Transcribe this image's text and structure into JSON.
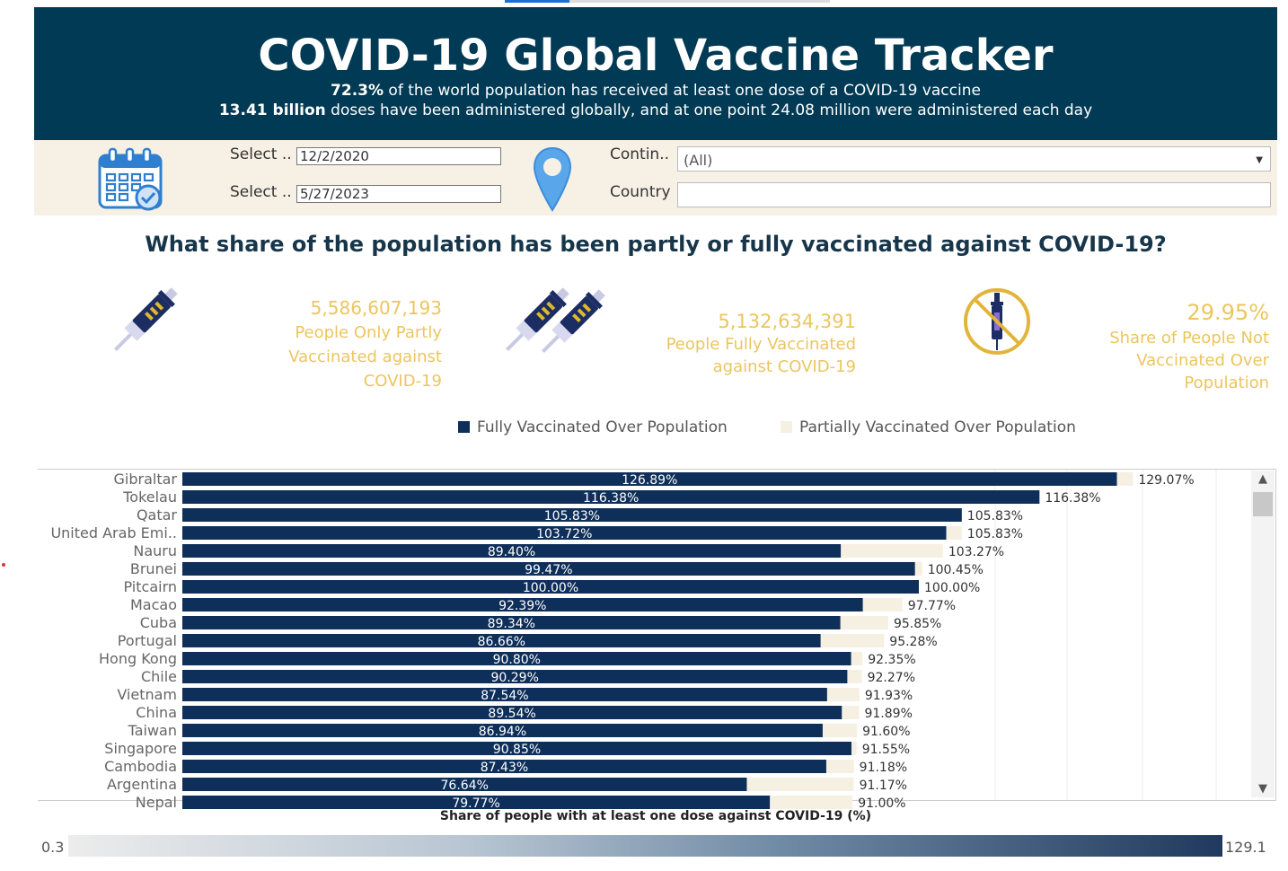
{
  "header": {
    "title": "COVID-19 Global Vaccine Tracker",
    "line1_bold": "72.3%",
    "line1_rest": " of the world population has received at least one dose of a COVID-19 vaccine",
    "line2_bold": "13.41 billion",
    "line2_rest": " doses have been administered globally, and at one point 24.08 million were administered each day"
  },
  "filters": {
    "start_label": "Select ..",
    "start_value": "12/2/2020",
    "end_label": "Select ..",
    "end_value": "5/27/2023",
    "continent_label": "Contin..",
    "continent_value": "(All)",
    "country_label": "Country",
    "country_value": ""
  },
  "question": "What share of the population has been partly or fully vaccinated against COVID-19?",
  "stats": {
    "partly": {
      "value": "5,586,607,193",
      "l1": "People Only Partly",
      "l2": "Vaccinated against",
      "l3": "COVID-19"
    },
    "fully": {
      "value": "5,132,634,391",
      "l1": "People Fully Vaccinated",
      "l2": "against COVID-19"
    },
    "not": {
      "value": "29.95%",
      "l1": "Share of People Not",
      "l2": "Vaccinated Over",
      "l3": "Population"
    }
  },
  "legend": {
    "fully": "Fully Vaccinated Over Population",
    "partially": "Partially Vaccinated Over Population"
  },
  "colors": {
    "fully": "#0e2f5a",
    "partially": "#f6f0e2",
    "header": "#003a54",
    "accent": "#ecc55d"
  },
  "chart_data": {
    "type": "bar",
    "orientation": "horizontal",
    "categories": [
      "Gibraltar",
      "Tokelau",
      "Qatar",
      "United Arab Emi..",
      "Nauru",
      "Brunei",
      "Pitcairn",
      "Macao",
      "Cuba",
      "Portugal",
      "Hong Kong",
      "Chile",
      "Vietnam",
      "China",
      "Taiwan",
      "Singapore",
      "Cambodia",
      "Argentina",
      "Nepal"
    ],
    "series": [
      {
        "name": "Fully Vaccinated Over Population",
        "values": [
          126.89,
          116.38,
          105.83,
          103.72,
          89.4,
          99.47,
          100.0,
          92.39,
          89.34,
          86.66,
          90.8,
          90.29,
          87.54,
          89.54,
          86.94,
          90.85,
          87.43,
          76.64,
          79.77
        ],
        "labels": [
          "126.89%",
          "116.38%",
          "105.83%",
          "103.72%",
          "89.40%",
          "99.47%",
          "100.00%",
          "92.39%",
          "89.34%",
          "86.66%",
          "90.80%",
          "90.29%",
          "87.54%",
          "89.54%",
          "86.94%",
          "90.85%",
          "87.43%",
          "76.64%",
          "79.77%"
        ]
      },
      {
        "name": "Share of people with at least one dose against COVID-19 (%)",
        "values": [
          129.07,
          116.38,
          105.83,
          105.83,
          103.27,
          100.45,
          100.0,
          97.77,
          95.85,
          95.28,
          92.35,
          92.27,
          91.93,
          91.89,
          91.6,
          91.55,
          91.18,
          91.17,
          91.0
        ],
        "labels": [
          "129.07%",
          "116.38%",
          "105.83%",
          "105.83%",
          "103.27%",
          "100.45%",
          "100.00%",
          "97.77%",
          "95.85%",
          "95.28%",
          "92.35%",
          "92.27%",
          "91.93%",
          "91.89%",
          "91.60%",
          "91.55%",
          "91.18%",
          "91.17%",
          "91.00%"
        ]
      }
    ],
    "xlim": [
      0,
      145
    ],
    "color_legend": {
      "title": "Share of people with at least one dose against COVID-19 (%)",
      "min": "0.3",
      "max": "129.1"
    }
  }
}
